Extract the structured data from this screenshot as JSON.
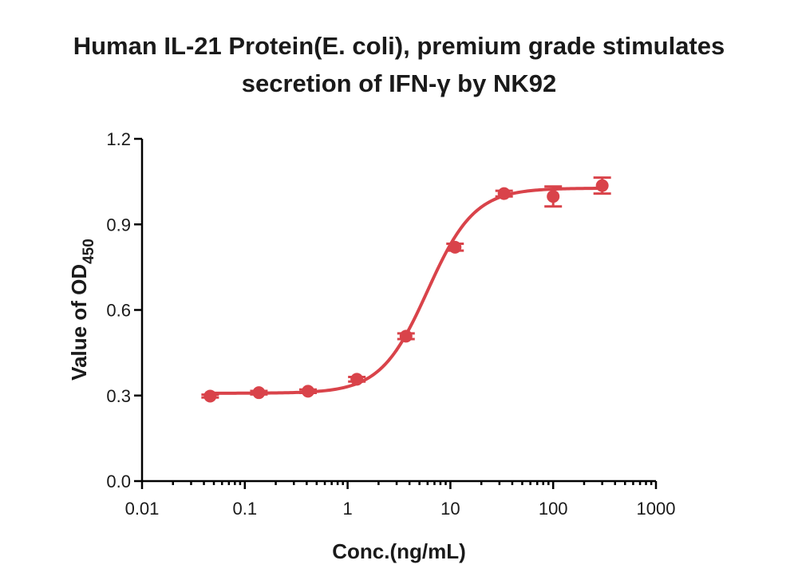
{
  "chart_data": {
    "type": "scatter",
    "title_line1": "Human IL-21 Protein(E. coli), premium grade stimulates",
    "title_line2": "secretion of IFN-γ by NK92",
    "xlabel": "Conc.(ng/mL)",
    "ylabel_main": "Value of OD",
    "ylabel_sub": "450",
    "x_scale": "log",
    "xlim": [
      0.01,
      1000
    ],
    "ylim": [
      0.0,
      1.2
    ],
    "x_ticks": [
      0.01,
      0.1,
      1,
      10,
      100,
      1000
    ],
    "x_tick_labels": [
      "0.01",
      "0.1",
      "1",
      "10",
      "100",
      "1000"
    ],
    "y_ticks": [
      0.0,
      0.3,
      0.6,
      0.9,
      1.2
    ],
    "y_tick_labels": [
      "0.0",
      "0.3",
      "0.6",
      "0.9",
      "1.2"
    ],
    "grid": false,
    "color": "#d9434a",
    "series": [
      {
        "x": [
          0.046,
          0.137,
          0.412,
          1.23,
          3.7,
          11.1,
          33.3,
          100,
          300
        ],
        "y": [
          0.298,
          0.31,
          0.315,
          0.357,
          0.508,
          0.82,
          1.008,
          0.998,
          1.036
        ],
        "err": [
          0.005,
          0.006,
          0.006,
          0.008,
          0.01,
          0.012,
          0.01,
          0.035,
          0.028
        ]
      }
    ],
    "fit": {
      "model": "4PL",
      "bottom": 0.308,
      "top": 1.027,
      "ec50": 6.0,
      "hill": 1.9
    }
  }
}
